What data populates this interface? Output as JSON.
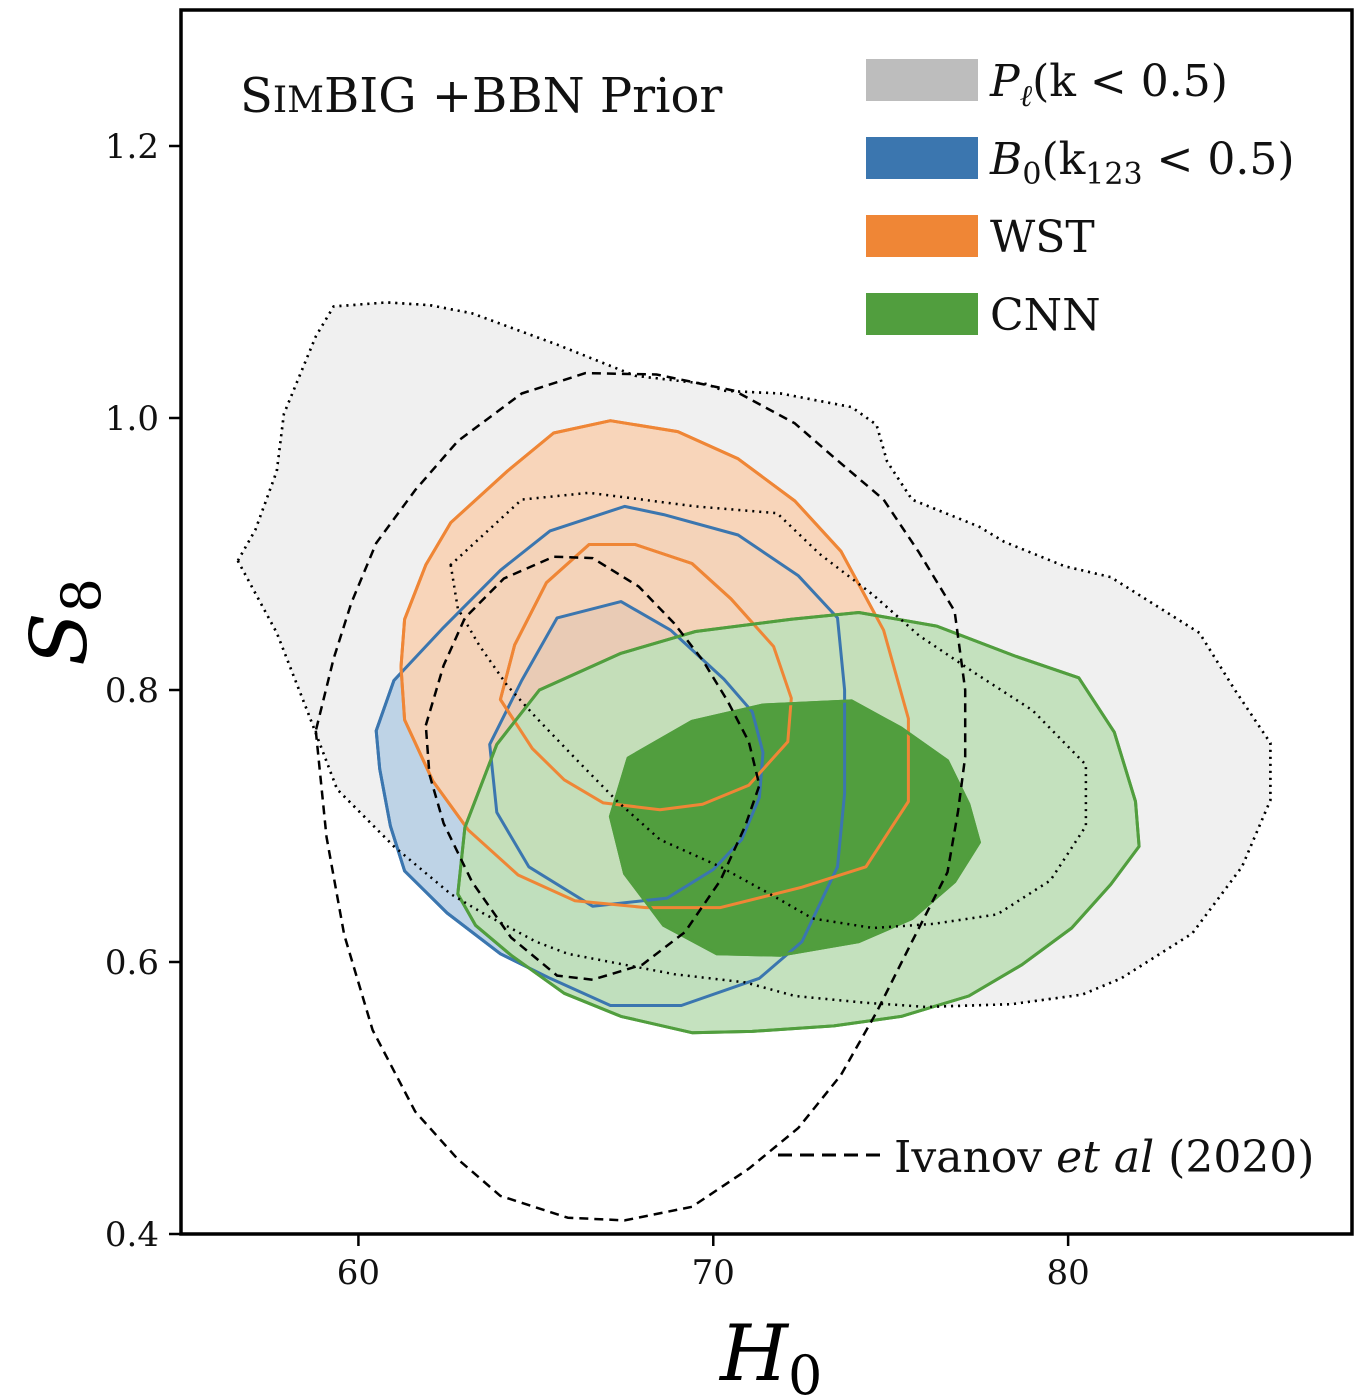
{
  "chart_data": {
    "type": "contour",
    "title": "",
    "xlabel": "H0",
    "ylabel": "S8",
    "xlim": [
      55,
      88
    ],
    "ylim": [
      0.4,
      1.3
    ],
    "xticks": [
      60,
      70,
      80
    ],
    "yticks": [
      0.4,
      0.6,
      0.8,
      1.0,
      1.2
    ],
    "xtick_labels": [
      "60",
      "70",
      "80"
    ],
    "ytick_labels": [
      "0.4",
      "0.6",
      "0.8",
      "1.0",
      "1.2"
    ],
    "grid": false,
    "legend_position": "top-right",
    "annotation": {
      "smallcaps_first": "S",
      "smallcaps_rest": "IM",
      "rest": "BIG +BBN Prior"
    },
    "legend": [
      {
        "key": "pl",
        "color": "#bdbdbd",
        "main": "P",
        "sub": "ℓ",
        "tail": "(k < 0.5)"
      },
      {
        "key": "b0",
        "color": "#3b76af",
        "main": "B",
        "sub": "0",
        "tail": "(k",
        "sub2": "123",
        "tail2": " < 0.5)"
      },
      {
        "key": "wst",
        "color": "#ef8636",
        "main": "WST"
      },
      {
        "key": "cnn",
        "color": "#519e3e",
        "main": "CNN"
      }
    ],
    "reference": {
      "label_pre": "Ivanov ",
      "label_italic": "et al",
      "label_post": " (2020)"
    },
    "series": [
      {
        "name": "P_ℓ(k < 0.5)",
        "fill": "#f0f0f0",
        "outer_fill": "#f0f0f0",
        "inner_fill": "#d4d4d4",
        "stroke": "#000000",
        "dash": "dotted",
        "outer": [
          [
            56.6,
            0.895
          ],
          [
            57.7,
            0.842
          ],
          [
            58.6,
            0.782
          ],
          [
            59.4,
            0.727
          ],
          [
            61.0,
            0.685
          ],
          [
            62.6,
            0.65
          ],
          [
            63.5,
            0.636
          ],
          [
            65.0,
            0.615
          ],
          [
            65.9,
            0.606
          ],
          [
            67.1,
            0.6
          ],
          [
            68.9,
            0.591
          ],
          [
            70.9,
            0.585
          ],
          [
            72.3,
            0.575
          ],
          [
            74.3,
            0.57
          ],
          [
            76.0,
            0.567
          ],
          [
            78.4,
            0.569
          ],
          [
            80.4,
            0.576
          ],
          [
            81.5,
            0.588
          ],
          [
            83.5,
            0.621
          ],
          [
            84.9,
            0.67
          ],
          [
            85.7,
            0.719
          ],
          [
            85.7,
            0.761
          ],
          [
            84.7,
            0.8
          ],
          [
            83.7,
            0.842
          ],
          [
            82.3,
            0.865
          ],
          [
            81.2,
            0.883
          ],
          [
            79.9,
            0.891
          ],
          [
            78.2,
            0.909
          ],
          [
            77.5,
            0.92
          ],
          [
            75.6,
            0.94
          ],
          [
            74.9,
            0.968
          ],
          [
            74.6,
            0.995
          ],
          [
            73.9,
            1.008
          ],
          [
            71.9,
            1.018
          ],
          [
            70.3,
            1.02
          ],
          [
            69.8,
            1.025
          ],
          [
            67.8,
            1.031
          ],
          [
            65.6,
            1.054
          ],
          [
            63.2,
            1.077
          ],
          [
            62.0,
            1.083
          ],
          [
            60.8,
            1.085
          ],
          [
            59.3,
            1.082
          ],
          [
            58.8,
            1.06
          ],
          [
            57.9,
            1.003
          ],
          [
            57.7,
            0.961
          ],
          [
            57.1,
            0.918
          ]
        ],
        "inner": [
          [
            62.6,
            0.892
          ],
          [
            62.8,
            0.86
          ],
          [
            63.4,
            0.833
          ],
          [
            64.2,
            0.803
          ],
          [
            65.0,
            0.78
          ],
          [
            66.1,
            0.75
          ],
          [
            67.3,
            0.718
          ],
          [
            68.5,
            0.69
          ],
          [
            70.2,
            0.67
          ],
          [
            71.6,
            0.65
          ],
          [
            72.8,
            0.632
          ],
          [
            74.5,
            0.625
          ],
          [
            76.2,
            0.628
          ],
          [
            78.0,
            0.635
          ],
          [
            79.5,
            0.66
          ],
          [
            80.5,
            0.7
          ],
          [
            80.5,
            0.745
          ],
          [
            79.0,
            0.785
          ],
          [
            77.4,
            0.812
          ],
          [
            75.8,
            0.84
          ],
          [
            74.5,
            0.87
          ],
          [
            73.0,
            0.9
          ],
          [
            71.8,
            0.93
          ],
          [
            69.5,
            0.935
          ],
          [
            66.5,
            0.945
          ],
          [
            64.6,
            0.94
          ]
        ]
      },
      {
        "name": "B_0(k123 < 0.5)",
        "fill": "#bad0e5",
        "outer_fill": "#bad0e5",
        "inner_fill": "#3b76af",
        "stroke": "#3b76af",
        "dash": "solid",
        "outer": [
          [
            60.5,
            0.77
          ],
          [
            61.0,
            0.807
          ],
          [
            62.4,
            0.846
          ],
          [
            64.0,
            0.888
          ],
          [
            65.4,
            0.917
          ],
          [
            67.5,
            0.935
          ],
          [
            68.6,
            0.929
          ],
          [
            70.7,
            0.914
          ],
          [
            72.4,
            0.884
          ],
          [
            73.5,
            0.853
          ],
          [
            73.7,
            0.8
          ],
          [
            73.7,
            0.724
          ],
          [
            73.5,
            0.67
          ],
          [
            72.5,
            0.615
          ],
          [
            71.3,
            0.588
          ],
          [
            69.1,
            0.568
          ],
          [
            67.1,
            0.568
          ],
          [
            65.4,
            0.588
          ],
          [
            64.0,
            0.606
          ],
          [
            62.5,
            0.636
          ],
          [
            61.3,
            0.667
          ],
          [
            60.9,
            0.7
          ],
          [
            60.6,
            0.742
          ]
        ],
        "inner": [
          [
            63.7,
            0.76
          ],
          [
            64.6,
            0.807
          ],
          [
            65.6,
            0.853
          ],
          [
            67.4,
            0.865
          ],
          [
            68.8,
            0.844
          ],
          [
            70.3,
            0.808
          ],
          [
            71.1,
            0.784
          ],
          [
            71.4,
            0.754
          ],
          [
            71.3,
            0.721
          ],
          [
            70.8,
            0.69
          ],
          [
            70.0,
            0.668
          ],
          [
            68.7,
            0.647
          ],
          [
            66.6,
            0.641
          ],
          [
            64.8,
            0.67
          ],
          [
            63.9,
            0.71
          ]
        ]
      },
      {
        "name": "WST",
        "fill": "#f8d3b5",
        "outer_fill": "#f8d3b5",
        "inner_fill": "#f8d3b5",
        "stroke": "#ef8636",
        "dash": "solid",
        "outer": [
          [
            61.2,
            0.817
          ],
          [
            61.3,
            0.852
          ],
          [
            61.9,
            0.892
          ],
          [
            62.6,
            0.923
          ],
          [
            64.2,
            0.961
          ],
          [
            65.5,
            0.989
          ],
          [
            67.1,
            0.998
          ],
          [
            69.0,
            0.99
          ],
          [
            70.7,
            0.97
          ],
          [
            72.3,
            0.939
          ],
          [
            73.6,
            0.902
          ],
          [
            74.8,
            0.844
          ],
          [
            75.5,
            0.779
          ],
          [
            75.5,
            0.718
          ],
          [
            74.3,
            0.67
          ],
          [
            72.5,
            0.655
          ],
          [
            70.2,
            0.64
          ],
          [
            68.1,
            0.64
          ],
          [
            66.1,
            0.645
          ],
          [
            64.5,
            0.664
          ],
          [
            63.1,
            0.697
          ],
          [
            62.1,
            0.733
          ],
          [
            61.3,
            0.778
          ]
        ],
        "inner": [
          [
            64.0,
            0.793
          ],
          [
            64.4,
            0.833
          ],
          [
            65.3,
            0.879
          ],
          [
            66.5,
            0.907
          ],
          [
            67.8,
            0.907
          ],
          [
            69.4,
            0.893
          ],
          [
            70.5,
            0.867
          ],
          [
            71.7,
            0.832
          ],
          [
            72.2,
            0.794
          ],
          [
            72.1,
            0.762
          ],
          [
            71.0,
            0.73
          ],
          [
            69.7,
            0.716
          ],
          [
            68.5,
            0.712
          ],
          [
            66.9,
            0.717
          ],
          [
            65.8,
            0.734
          ],
          [
            64.9,
            0.757
          ]
        ]
      },
      {
        "name": "CNN",
        "fill": "#c0dfba",
        "outer_fill": "#c0dfba",
        "inner_fill": "#519e3e",
        "stroke": "#519e3e",
        "dash": "solid",
        "outer": [
          [
            62.8,
            0.65
          ],
          [
            63.0,
            0.699
          ],
          [
            63.9,
            0.76
          ],
          [
            65.1,
            0.8
          ],
          [
            67.4,
            0.827
          ],
          [
            69.5,
            0.843
          ],
          [
            72.2,
            0.852
          ],
          [
            74.1,
            0.857
          ],
          [
            76.3,
            0.847
          ],
          [
            78.5,
            0.825
          ],
          [
            80.3,
            0.809
          ],
          [
            81.3,
            0.769
          ],
          [
            81.9,
            0.718
          ],
          [
            82.0,
            0.685
          ],
          [
            81.2,
            0.657
          ],
          [
            80.1,
            0.625
          ],
          [
            78.7,
            0.598
          ],
          [
            77.2,
            0.575
          ],
          [
            75.3,
            0.56
          ],
          [
            73.4,
            0.553
          ],
          [
            71.1,
            0.549
          ],
          [
            69.4,
            0.548
          ],
          [
            67.4,
            0.56
          ],
          [
            65.8,
            0.577
          ],
          [
            64.3,
            0.605
          ],
          [
            63.3,
            0.627
          ]
        ],
        "inner": [
          [
            67.1,
            0.707
          ],
          [
            67.6,
            0.75
          ],
          [
            69.4,
            0.777
          ],
          [
            71.4,
            0.789
          ],
          [
            73.9,
            0.792
          ],
          [
            75.3,
            0.772
          ],
          [
            76.6,
            0.748
          ],
          [
            77.2,
            0.716
          ],
          [
            77.5,
            0.688
          ],
          [
            76.8,
            0.659
          ],
          [
            75.6,
            0.632
          ],
          [
            74.1,
            0.615
          ],
          [
            71.9,
            0.605
          ],
          [
            70.1,
            0.606
          ],
          [
            68.6,
            0.627
          ],
          [
            67.5,
            0.665
          ]
        ]
      }
    ],
    "reference_contours": {
      "name": "Ivanov et al (2020)",
      "stroke": "#000000",
      "dash": "dashed",
      "outer": [
        [
          58.8,
          0.77
        ],
        [
          59.1,
          0.692
        ],
        [
          59.6,
          0.62
        ],
        [
          60.4,
          0.55
        ],
        [
          61.6,
          0.49
        ],
        [
          62.8,
          0.455
        ],
        [
          64.0,
          0.428
        ],
        [
          65.9,
          0.412
        ],
        [
          67.5,
          0.41
        ],
        [
          69.4,
          0.42
        ],
        [
          71.0,
          0.448
        ],
        [
          72.4,
          0.478
        ],
        [
          73.6,
          0.517
        ],
        [
          74.6,
          0.563
        ],
        [
          75.6,
          0.615
        ],
        [
          76.6,
          0.666
        ],
        [
          76.9,
          0.711
        ],
        [
          77.1,
          0.751
        ],
        [
          77.1,
          0.8
        ],
        [
          76.8,
          0.858
        ],
        [
          75.8,
          0.901
        ],
        [
          74.8,
          0.94
        ],
        [
          73.4,
          0.971
        ],
        [
          72.3,
          0.996
        ],
        [
          70.6,
          1.02
        ],
        [
          68.4,
          1.032
        ],
        [
          66.4,
          1.033
        ],
        [
          64.6,
          1.018
        ],
        [
          62.8,
          0.983
        ],
        [
          61.6,
          0.947
        ],
        [
          60.5,
          0.908
        ],
        [
          59.8,
          0.864
        ],
        [
          59.3,
          0.823
        ]
      ],
      "inner": [
        [
          61.9,
          0.774
        ],
        [
          62.4,
          0.818
        ],
        [
          63.0,
          0.853
        ],
        [
          64.1,
          0.882
        ],
        [
          65.5,
          0.898
        ],
        [
          66.6,
          0.897
        ],
        [
          67.9,
          0.876
        ],
        [
          68.9,
          0.849
        ],
        [
          69.7,
          0.822
        ],
        [
          70.4,
          0.792
        ],
        [
          71.0,
          0.762
        ],
        [
          71.3,
          0.73
        ],
        [
          70.9,
          0.7
        ],
        [
          70.2,
          0.66
        ],
        [
          69.2,
          0.622
        ],
        [
          68.0,
          0.598
        ],
        [
          66.6,
          0.587
        ],
        [
          65.6,
          0.59
        ],
        [
          64.3,
          0.618
        ],
        [
          63.2,
          0.659
        ],
        [
          62.4,
          0.702
        ],
        [
          62.0,
          0.738
        ]
      ]
    }
  }
}
